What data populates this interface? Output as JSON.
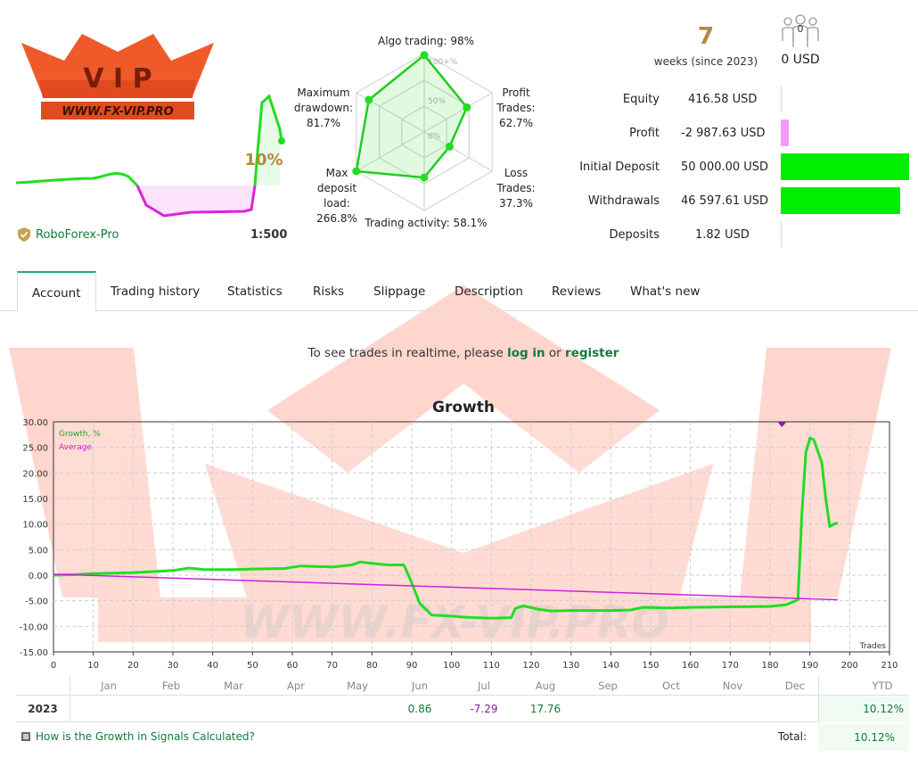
{
  "logo": {
    "text": "WWW.FX-VIP.PRO",
    "letters": "VIP"
  },
  "mini_chart": {
    "percent_label": "10%"
  },
  "broker": {
    "name": "RoboForex-Pro",
    "leverage": "1:500"
  },
  "radar": {
    "ticks": [
      "100+%",
      "50%",
      "0%"
    ],
    "axes": [
      {
        "label": "Algo trading: 98%",
        "value": 98
      },
      {
        "label_lines": [
          "Profit",
          "Trades:",
          "62.7%"
        ],
        "value": 62.7
      },
      {
        "label_lines": [
          "Loss",
          "Trades:",
          "37.3%"
        ],
        "value": 37.3
      },
      {
        "label": "Trading activity: 58.1%",
        "value": 58.1
      },
      {
        "label_lines": [
          "Max",
          "deposit",
          "load:",
          "266.8%"
        ],
        "value": 100
      },
      {
        "label_lines": [
          "Maximum",
          "drawdown:",
          "81.7%"
        ],
        "value": 81.7
      }
    ]
  },
  "summary": {
    "weeks": "7",
    "weeks_text": "weeks (since 2023)",
    "subscribers": "0",
    "price": "0 USD"
  },
  "stats": [
    {
      "label": "Equity",
      "value": "416.58 USD",
      "bar_fraction": 0,
      "bar_color": "#00ee00"
    },
    {
      "label": "Profit",
      "value": "-2 987.63 USD",
      "bar_fraction": 0.06,
      "bar_color": "#f39cf0"
    },
    {
      "label": "Initial Deposit",
      "value": "50 000.00 USD",
      "bar_fraction": 1.0,
      "bar_color": "#00ee00"
    },
    {
      "label": "Withdrawals",
      "value": "46 597.61 USD",
      "bar_fraction": 0.93,
      "bar_color": "#00ee00"
    },
    {
      "label": "Deposits",
      "value": "1.82 USD",
      "bar_fraction": 0,
      "bar_color": "#00ee00"
    }
  ],
  "tabs": [
    "Account",
    "Trading history",
    "Statistics",
    "Risks",
    "Slippage",
    "Description",
    "Reviews",
    "What's new"
  ],
  "notice": {
    "before": "To see trades in realtime, please ",
    "login": "log in",
    "middle": " or ",
    "register": "register"
  },
  "growth": {
    "title": "Growth",
    "legend_growth": "Growth, %",
    "legend_average": "Average",
    "xlabel": "Trades"
  },
  "chart_data": {
    "type": "line",
    "title": "Growth",
    "xlabel": "Trades",
    "ylabel": "",
    "xlim": [
      0,
      210
    ],
    "ylim": [
      -15,
      30
    ],
    "x_ticks": [
      0,
      10,
      20,
      30,
      40,
      50,
      60,
      70,
      80,
      90,
      100,
      110,
      120,
      130,
      140,
      150,
      160,
      170,
      180,
      190,
      200,
      210
    ],
    "y_ticks": [
      "30.00",
      "25.00",
      "20.00",
      "15.00",
      "10.00",
      "5.00",
      "0.00",
      "-5.00",
      "-10.00",
      "-15.00"
    ],
    "series": [
      {
        "name": "Growth, %",
        "color": "#22dd22",
        "points": [
          [
            0,
            0
          ],
          [
            5,
            0.1
          ],
          [
            10,
            0.3
          ],
          [
            15,
            0.4
          ],
          [
            20,
            0.5
          ],
          [
            25,
            0.7
          ],
          [
            30,
            0.9
          ],
          [
            34,
            1.4
          ],
          [
            38,
            1.1
          ],
          [
            45,
            1.1
          ],
          [
            50,
            1.2
          ],
          [
            58,
            1.3
          ],
          [
            62,
            1.8
          ],
          [
            70,
            1.6
          ],
          [
            75,
            2.0
          ],
          [
            77,
            2.6
          ],
          [
            80,
            2.3
          ],
          [
            84,
            2.0
          ],
          [
            88,
            2.0
          ],
          [
            90,
            -1.5
          ],
          [
            92,
            -5.5
          ],
          [
            95,
            -7.8
          ],
          [
            100,
            -8.0
          ],
          [
            103,
            -8.2
          ],
          [
            106,
            -8.3
          ],
          [
            110,
            -8.4
          ],
          [
            115,
            -8.3
          ],
          [
            116,
            -6.5
          ],
          [
            118,
            -6.0
          ],
          [
            122,
            -6.7
          ],
          [
            125,
            -7.0
          ],
          [
            130,
            -6.9
          ],
          [
            140,
            -6.9
          ],
          [
            145,
            -6.8
          ],
          [
            148,
            -6.3
          ],
          [
            155,
            -6.4
          ],
          [
            160,
            -6.3
          ],
          [
            170,
            -6.2
          ],
          [
            180,
            -6.1
          ],
          [
            184,
            -5.8
          ],
          [
            187,
            -4.8
          ],
          [
            188,
            12.0
          ],
          [
            189,
            24.0
          ],
          [
            190,
            26.8
          ],
          [
            191,
            26.5
          ],
          [
            193,
            22.0
          ],
          [
            194,
            15.0
          ],
          [
            195,
            9.5
          ],
          [
            196,
            10.0
          ],
          [
            197,
            10.2
          ]
        ]
      },
      {
        "name": "Average",
        "color": "#cc22dd",
        "points": [
          [
            0,
            0.2
          ],
          [
            197,
            -4.8
          ]
        ]
      }
    ],
    "marker": {
      "x": 183,
      "y": 30
    }
  },
  "months_table": {
    "months": [
      "Jan",
      "Feb",
      "Mar",
      "Apr",
      "May",
      "Jun",
      "Jul",
      "Aug",
      "Sep",
      "Oct",
      "Nov",
      "Dec"
    ],
    "ytd_header": "YTD",
    "year": "2023",
    "values": {
      "Jun": "0.86",
      "Jul": "-7.29",
      "Aug": "17.76"
    },
    "ytd": "10.12%",
    "howlink": "How is the Growth in Signals Calculated?",
    "total_label": "Total:",
    "total_value": "10.12%"
  },
  "colors": {
    "accent": "#137a3b",
    "growth": "#22dd22",
    "average": "#cc22dd",
    "watermark": "#ff5a3c"
  }
}
